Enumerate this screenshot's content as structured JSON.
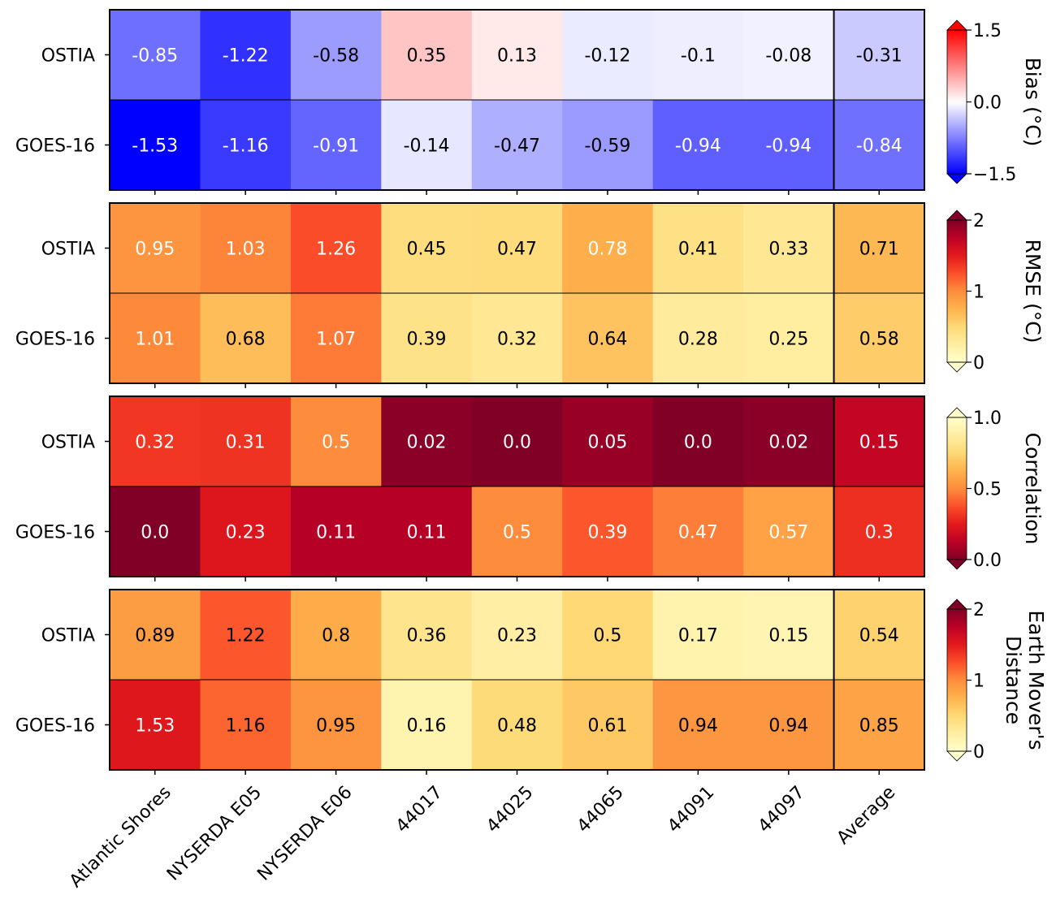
{
  "chart_data": {
    "type": "heatmap",
    "columns": [
      "Atlantic Shores",
      "NYSERDA E05",
      "NYSERDA E06",
      "44017",
      "44025",
      "44065",
      "44091",
      "44097",
      "Average"
    ],
    "rows": [
      "OSTIA",
      "GOES-16"
    ],
    "panels": [
      {
        "metric": "Bias",
        "colorbar_label": [
          "Bias (°C)"
        ],
        "colormap": "bwr",
        "vmin": -1.5,
        "vmax": 1.5,
        "ticks": [
          "1.5",
          "0.0",
          "−1.5"
        ],
        "tick_values": [
          1.5,
          0.0,
          -1.5
        ],
        "values": [
          [
            -0.85,
            -1.22,
            -0.58,
            0.35,
            0.13,
            -0.12,
            -0.1,
            -0.08,
            -0.31
          ],
          [
            -1.53,
            -1.16,
            -0.91,
            -0.14,
            -0.47,
            -0.59,
            -0.94,
            -0.94,
            -0.84
          ]
        ],
        "labels": [
          [
            "-0.85",
            "-1.22",
            "-0.58",
            "0.35",
            "0.13",
            "-0.12",
            "-0.1",
            "-0.08",
            "-0.31"
          ],
          [
            "-1.53",
            "-1.16",
            "-0.91",
            "-0.14",
            "-0.47",
            "-0.59",
            "-0.94",
            "-0.94",
            "-0.84"
          ]
        ]
      },
      {
        "metric": "RMSE",
        "colorbar_label": [
          "RMSE (°C)"
        ],
        "colormap": "YlOrRd",
        "vmin": 0,
        "vmax": 2,
        "ticks": [
          "2",
          "1",
          "0"
        ],
        "tick_values": [
          2,
          1,
          0
        ],
        "values": [
          [
            0.95,
            1.03,
            1.26,
            0.45,
            0.47,
            0.78,
            0.41,
            0.33,
            0.71
          ],
          [
            1.01,
            0.68,
            1.07,
            0.39,
            0.32,
            0.64,
            0.28,
            0.25,
            0.58
          ]
        ],
        "labels": [
          [
            "0.95",
            "1.03",
            "1.26",
            "0.45",
            "0.47",
            "0.78",
            "0.41",
            "0.33",
            "0.71"
          ],
          [
            "1.01",
            "0.68",
            "1.07",
            "0.39",
            "0.32",
            "0.64",
            "0.28",
            "0.25",
            "0.58"
          ]
        ]
      },
      {
        "metric": "Correlation",
        "colorbar_label": [
          "Correlation"
        ],
        "colormap": "YlOrRd_r",
        "vmin": 0,
        "vmax": 1,
        "ticks": [
          "1.0",
          "0.5",
          "0.0"
        ],
        "tick_values": [
          1.0,
          0.5,
          0.0
        ],
        "values": [
          [
            0.32,
            0.31,
            0.5,
            0.02,
            0.0,
            0.05,
            0.0,
            0.02,
            0.15
          ],
          [
            0.0,
            0.23,
            0.11,
            0.11,
            0.5,
            0.39,
            0.47,
            0.57,
            0.3
          ]
        ],
        "labels": [
          [
            "0.32",
            "0.31",
            "0.5",
            "0.02",
            "0.0",
            "0.05",
            "0.0",
            "0.02",
            "0.15"
          ],
          [
            "0.0",
            "0.23",
            "0.11",
            "0.11",
            "0.5",
            "0.39",
            "0.47",
            "0.57",
            "0.3"
          ]
        ]
      },
      {
        "metric": "Earth Mover's Distance",
        "colorbar_label": [
          "Earth Mover's",
          "Distance"
        ],
        "colormap": "YlOrRd",
        "vmin": 0,
        "vmax": 2,
        "ticks": [
          "2",
          "1",
          "0"
        ],
        "tick_values": [
          2,
          1,
          0
        ],
        "values": [
          [
            0.89,
            1.22,
            0.8,
            0.36,
            0.23,
            0.5,
            0.17,
            0.15,
            0.54
          ],
          [
            1.53,
            1.16,
            0.95,
            0.16,
            0.48,
            0.61,
            0.94,
            0.94,
            0.85
          ]
        ],
        "labels": [
          [
            "0.89",
            "1.22",
            "0.8",
            "0.36",
            "0.23",
            "0.5",
            "0.17",
            "0.15",
            "0.54"
          ],
          [
            "1.53",
            "1.16",
            "0.95",
            "0.16",
            "0.48",
            "0.61",
            "0.94",
            "0.94",
            "0.85"
          ]
        ]
      }
    ],
    "label_colors": {
      "Bias": [
        [
          "#ffffff",
          "#ffffff",
          "#000000",
          "#000000",
          "#000000",
          "#000000",
          "#000000",
          "#000000",
          "#000000"
        ],
        [
          "#ffffff",
          "#ffffff",
          "#ffffff",
          "#000000",
          "#000000",
          "#000000",
          "#ffffff",
          "#ffffff",
          "#ffffff"
        ]
      ],
      "RMSE": [
        [
          "#ffffff",
          "#ffffff",
          "#ffffff",
          "#000000",
          "#000000",
          "#ffffff",
          "#000000",
          "#000000",
          "#000000"
        ],
        [
          "#ffffff",
          "#000000",
          "#ffffff",
          "#000000",
          "#000000",
          "#000000",
          "#000000",
          "#000000",
          "#000000"
        ]
      ],
      "Correlation": [
        [
          "#ffffff",
          "#ffffff",
          "#ffffff",
          "#ffffff",
          "#ffffff",
          "#ffffff",
          "#ffffff",
          "#ffffff",
          "#ffffff"
        ],
        [
          "#ffffff",
          "#ffffff",
          "#ffffff",
          "#ffffff",
          "#ffffff",
          "#ffffff",
          "#ffffff",
          "#ffffff",
          "#ffffff"
        ]
      ],
      "Earth Mover's Distance": [
        [
          "#000000",
          "#000000",
          "#000000",
          "#000000",
          "#000000",
          "#000000",
          "#000000",
          "#000000",
          "#000000"
        ],
        [
          "#ffffff",
          "#000000",
          "#000000",
          "#000000",
          "#000000",
          "#000000",
          "#000000",
          "#000000",
          "#000000"
        ]
      ]
    },
    "separator_before_column": "Average",
    "grid": false
  }
}
